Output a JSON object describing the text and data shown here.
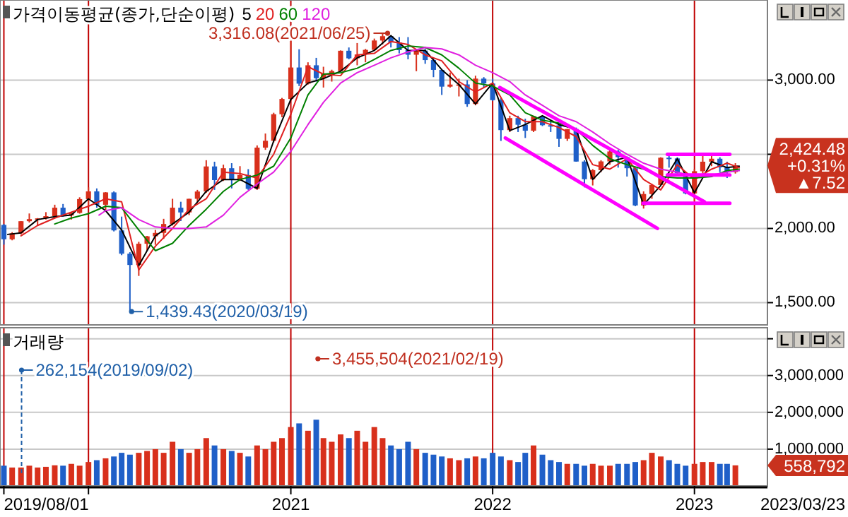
{
  "chart_data": [
    {
      "type": "candlestick",
      "title": "가격이동평균(종가,단순이평)",
      "legend": "top left",
      "grid": true,
      "tick_labels": "y",
      "xlim": [
        "2019-07-25",
        "2023-05-13"
      ],
      "ylim": [
        1350,
        3540
      ],
      "xticks": [
        {
          "value": "2019-08-01",
          "label": null
        },
        {
          "value": "2020-01-01",
          "label": null
        },
        {
          "value": "2021-01-01",
          "label": null
        },
        {
          "value": "2022-01-01",
          "label": null
        },
        {
          "value": "2023-01-01",
          "label": null
        }
      ],
      "yticks": [
        {
          "value": 1500,
          "label": "1,500.00"
        },
        {
          "value": 2000,
          "label": "2,000.00"
        },
        {
          "value": 2500,
          "label": null
        },
        {
          "value": 3000,
          "label": "3,000.00"
        }
      ],
      "x": [
        "2019-08-01",
        "2019-08-16",
        "2019-09-01",
        "2019-09-16",
        "2019-10-01",
        "2019-10-16",
        "2019-11-01",
        "2019-11-16",
        "2019-12-01",
        "2019-12-16",
        "2020-01-01",
        "2020-01-16",
        "2020-02-01",
        "2020-02-16",
        "2020-03-01",
        "2020-03-16",
        "2020-04-01",
        "2020-04-16",
        "2020-05-01",
        "2020-05-16",
        "2020-06-01",
        "2020-06-16",
        "2020-07-01",
        "2020-07-16",
        "2020-08-01",
        "2020-08-16",
        "2020-09-01",
        "2020-09-16",
        "2020-10-01",
        "2020-10-16",
        "2020-11-01",
        "2020-11-16",
        "2020-12-01",
        "2020-12-16",
        "2021-01-01",
        "2021-01-16",
        "2021-02-01",
        "2021-02-16",
        "2021-03-01",
        "2021-03-16",
        "2021-04-01",
        "2021-04-16",
        "2021-05-01",
        "2021-05-16",
        "2021-06-01",
        "2021-06-16",
        "2021-07-01",
        "2021-07-16",
        "2021-08-01",
        "2021-08-16",
        "2021-09-01",
        "2021-09-16",
        "2021-10-01",
        "2021-10-16",
        "2021-11-01",
        "2021-11-16",
        "2021-12-01",
        "2021-12-16",
        "2022-01-01",
        "2022-01-16",
        "2022-02-01",
        "2022-02-16",
        "2022-03-01",
        "2022-03-16",
        "2022-04-01",
        "2022-04-16",
        "2022-05-01",
        "2022-05-16",
        "2022-06-01",
        "2022-06-16",
        "2022-07-01",
        "2022-07-16",
        "2022-08-01",
        "2022-08-16",
        "2022-09-01",
        "2022-09-16",
        "2022-10-01",
        "2022-10-16",
        "2022-11-01",
        "2022-11-16",
        "2022-12-01",
        "2022-12-16",
        "2023-01-01",
        "2023-01-16",
        "2023-02-01",
        "2023-02-16",
        "2023-03-01",
        "2023-03-16"
      ],
      "ohlc": [
        [
          2024,
          2030,
          1891,
          1927
        ],
        [
          1927,
          1975,
          1920,
          1967
        ],
        [
          1967,
          2050,
          1960,
          2049
        ],
        [
          2049,
          2101,
          2040,
          2063
        ],
        [
          2063,
          2070,
          2020,
          2068
        ],
        [
          2068,
          2110,
          2060,
          2083
        ],
        [
          2083,
          2160,
          2080,
          2140
        ],
        [
          2140,
          2165,
          2080,
          2088
        ],
        [
          2088,
          2110,
          2060,
          2105
        ],
        [
          2105,
          2210,
          2100,
          2198
        ],
        [
          2198,
          2277,
          2150,
          2250
        ],
        [
          2250,
          2270,
          2140,
          2160
        ],
        [
          2160,
          2245,
          2120,
          2243
        ],
        [
          2243,
          2250,
          1980,
          1987
        ],
        [
          1987,
          2080,
          1820,
          1830
        ],
        [
          1830,
          1840,
          1439.43,
          1754
        ],
        [
          1754,
          1910,
          1680,
          1897
        ],
        [
          1897,
          1950,
          1850,
          1947
        ],
        [
          1947,
          1990,
          1890,
          1970
        ],
        [
          1970,
          2065,
          1930,
          2030
        ],
        [
          2030,
          2200,
          2020,
          2140
        ],
        [
          2140,
          2180,
          2050,
          2108
        ],
        [
          2108,
          2200,
          2090,
          2200
        ],
        [
          2200,
          2260,
          2180,
          2249
        ],
        [
          2249,
          2460,
          2240,
          2418
        ],
        [
          2418,
          2450,
          2260,
          2326
        ],
        [
          2326,
          2430,
          2320,
          2406
        ],
        [
          2406,
          2440,
          2270,
          2327
        ],
        [
          2327,
          2420,
          2320,
          2360
        ],
        [
          2360,
          2400,
          2260,
          2267
        ],
        [
          2267,
          2560,
          2260,
          2545
        ],
        [
          2545,
          2640,
          2530,
          2591
        ],
        [
          2591,
          2780,
          2580,
          2770
        ],
        [
          2770,
          2880,
          2750,
          2873
        ],
        [
          2873,
          3266,
          2860,
          3085
        ],
        [
          3085,
          3208,
          2960,
          2976
        ],
        [
          2976,
          3120,
          2970,
          3100
        ],
        [
          3100,
          3150,
          2990,
          3013
        ],
        [
          3013,
          3090,
          2950,
          3045
        ],
        [
          3045,
          3070,
          2990,
          3061
        ],
        [
          3061,
          3200,
          3060,
          3198
        ],
        [
          3198,
          3220,
          3140,
          3147
        ],
        [
          3147,
          3250,
          3100,
          3173
        ],
        [
          3173,
          3210,
          3120,
          3204
        ],
        [
          3204,
          3280,
          3200,
          3267
        ],
        [
          3267,
          3316.08,
          3240,
          3296
        ],
        [
          3296,
          3300,
          3220,
          3254
        ],
        [
          3254,
          3290,
          3180,
          3202
        ],
        [
          3202,
          3290,
          3140,
          3171
        ],
        [
          3171,
          3210,
          3060,
          3199
        ],
        [
          3199,
          3210,
          3110,
          3135
        ],
        [
          3135,
          3150,
          3020,
          3069
        ],
        [
          3069,
          3070,
          2900,
          2956
        ],
        [
          2956,
          3050,
          2950,
          2970
        ],
        [
          2970,
          3010,
          2890,
          2971
        ],
        [
          2971,
          3000,
          2820,
          2839
        ],
        [
          2839,
          3030,
          2830,
          3010
        ],
        [
          3010,
          3020,
          2950,
          2977
        ],
        [
          2977,
          3010,
          2860,
          2865
        ],
        [
          2865,
          2880,
          2590,
          2663
        ],
        [
          2663,
          2760,
          2650,
          2744
        ],
        [
          2744,
          2760,
          2650,
          2699
        ],
        [
          2699,
          2740,
          2610,
          2659
        ],
        [
          2659,
          2760,
          2650,
          2757
        ],
        [
          2757,
          2760,
          2690,
          2696
        ],
        [
          2696,
          2730,
          2650,
          2695
        ],
        [
          2695,
          2700,
          2550,
          2604
        ],
        [
          2604,
          2670,
          2590,
          2670
        ],
        [
          2670,
          2680,
          2450,
          2451
        ],
        [
          2451,
          2460,
          2277,
          2332
        ],
        [
          2332,
          2400,
          2290,
          2393
        ],
        [
          2393,
          2460,
          2380,
          2452
        ],
        [
          2452,
          2530,
          2430,
          2519
        ],
        [
          2519,
          2530,
          2410,
          2481
        ],
        [
          2481,
          2485,
          2350,
          2406
        ],
        [
          2406,
          2410,
          2150,
          2155
        ],
        [
          2155,
          2250,
          2134,
          2232
        ],
        [
          2232,
          2300,
          2200,
          2293
        ],
        [
          2293,
          2480,
          2290,
          2477
        ],
        [
          2477,
          2490,
          2410,
          2472
        ],
        [
          2472,
          2480,
          2370,
          2372
        ],
        [
          2372,
          2380,
          2230,
          2236
        ],
        [
          2236,
          2400,
          2180,
          2386
        ],
        [
          2386,
          2490,
          2370,
          2450
        ],
        [
          2450,
          2490,
          2420,
          2470
        ],
        [
          2470,
          2480,
          2380,
          2412
        ],
        [
          2412,
          2450,
          2340,
          2380
        ],
        [
          2380,
          2440,
          2370,
          2424.48
        ]
      ],
      "colors": [
        "#1f5fc8",
        "#d8301c",
        "#d8301c",
        "#d8301c",
        "#d8301c",
        "#d8301c",
        "#d8301c",
        "#1f5fc8",
        "#d8301c",
        "#d8301c",
        "#d8301c",
        "#1f5fc8",
        "#d8301c",
        "#1f5fc8",
        "#1f5fc8",
        "#1f5fc8",
        "#d8301c",
        "#d8301c",
        "#d8301c",
        "#d8301c",
        "#d8301c",
        "#1f5fc8",
        "#d8301c",
        "#d8301c",
        "#d8301c",
        "#1f5fc8",
        "#d8301c",
        "#1f5fc8",
        "#d8301c",
        "#1f5fc8",
        "#d8301c",
        "#d8301c",
        "#d8301c",
        "#d8301c",
        "#d8301c",
        "#1f5fc8",
        "#d8301c",
        "#1f5fc8",
        "#d8301c",
        "#d8301c",
        "#d8301c",
        "#1f5fc8",
        "#d8301c",
        "#d8301c",
        "#d8301c",
        "#d8301c",
        "#1f5fc8",
        "#1f5fc8",
        "#1f5fc8",
        "#d8301c",
        "#1f5fc8",
        "#1f5fc8",
        "#1f5fc8",
        "#d8301c",
        "#d8301c",
        "#1f5fc8",
        "#d8301c",
        "#1f5fc8",
        "#1f5fc8",
        "#1f5fc8",
        "#d8301c",
        "#1f5fc8",
        "#1f5fc8",
        "#d8301c",
        "#1f5fc8",
        "#1f5fc8",
        "#1f5fc8",
        "#d8301c",
        "#1f5fc8",
        "#1f5fc8",
        "#d8301c",
        "#d8301c",
        "#d8301c",
        "#1f5fc8",
        "#1f5fc8",
        "#1f5fc8",
        "#d8301c",
        "#d8301c",
        "#d8301c",
        "#1f5fc8",
        "#1f5fc8",
        "#1f5fc8",
        "#d8301c",
        "#d8301c",
        "#d8301c",
        "#1f5fc8",
        "#1f5fc8",
        "#d8301c"
      ],
      "series": [
        {
          "name": "5",
          "type": "line",
          "color": "#000000",
          "x": [
            "2019-08-08",
            "2019-09-01",
            "2019-10-01",
            "2019-11-01",
            "2019-12-01",
            "2020-01-01",
            "2020-02-01",
            "2020-03-01",
            "2020-04-01",
            "2020-05-01",
            "2020-06-01",
            "2020-07-01",
            "2020-08-01",
            "2020-09-01",
            "2020-10-01",
            "2020-11-01",
            "2020-12-01",
            "2021-01-01",
            "2021-02-01",
            "2021-03-01",
            "2021-04-01",
            "2021-05-01",
            "2021-06-01",
            "2021-07-01",
            "2021-08-01",
            "2021-09-01",
            "2021-10-01",
            "2021-11-01",
            "2021-12-01",
            "2022-01-01",
            "2022-02-01",
            "2022-03-01",
            "2022-04-01",
            "2022-05-01",
            "2022-06-01",
            "2022-07-01",
            "2022-08-01",
            "2022-09-01",
            "2022-10-01",
            "2022-11-01",
            "2022-12-01",
            "2023-01-01",
            "2023-02-01",
            "2023-03-01",
            "2023-03-23"
          ],
          "values": [
            1960,
            1970,
            2060,
            2080,
            2090,
            2200,
            2120,
            1990,
            1750,
            1950,
            2030,
            2110,
            2250,
            2330,
            2330,
            2270,
            2590,
            2870,
            2980,
            3010,
            3060,
            3150,
            3200,
            3300,
            3200,
            3200,
            3070,
            2970,
            2840,
            2980,
            2660,
            2700,
            2760,
            2700,
            2670,
            2330,
            2450,
            2480,
            2160,
            2290,
            2470,
            2240,
            2450,
            2410,
            2420
          ]
        },
        {
          "name": "20",
          "type": "line",
          "color": "#e02020",
          "x": [
            "2019-09-01",
            "2019-10-01",
            "2019-11-01",
            "2019-12-01",
            "2020-01-01",
            "2020-02-01",
            "2020-03-01",
            "2020-04-01",
            "2020-05-01",
            "2020-06-01",
            "2020-07-01",
            "2020-08-01",
            "2020-09-01",
            "2020-10-01",
            "2020-11-01",
            "2020-12-01",
            "2021-01-01",
            "2021-02-01",
            "2021-03-01",
            "2021-04-01",
            "2021-05-01",
            "2021-06-01",
            "2021-07-01",
            "2021-08-01",
            "2021-09-01",
            "2021-10-01",
            "2021-11-01",
            "2021-12-01",
            "2022-01-01",
            "2022-02-01",
            "2022-03-01",
            "2022-04-01",
            "2022-05-01",
            "2022-06-01",
            "2022-07-01",
            "2022-08-01",
            "2022-09-01",
            "2022-10-01",
            "2022-11-01",
            "2022-12-01",
            "2023-01-01",
            "2023-02-01",
            "2023-03-01",
            "2023-03-23"
          ],
          "values": [
            1950,
            2020,
            2070,
            2110,
            2150,
            2200,
            2180,
            1720,
            1880,
            2000,
            2130,
            2200,
            2380,
            2370,
            2340,
            2500,
            2770,
            3090,
            3040,
            3030,
            3170,
            3180,
            3260,
            3240,
            3170,
            3130,
            2990,
            2920,
            2980,
            2780,
            2720,
            2720,
            2680,
            2620,
            2430,
            2400,
            2470,
            2330,
            2260,
            2430,
            2330,
            2400,
            2440,
            2410
          ]
        },
        {
          "name": "60",
          "type": "line",
          "color": "#008000",
          "x": [
            "2019-11-01",
            "2019-12-01",
            "2020-01-01",
            "2020-02-01",
            "2020-03-01",
            "2020-04-01",
            "2020-05-01",
            "2020-06-01",
            "2020-07-01",
            "2020-08-01",
            "2020-09-01",
            "2020-10-01",
            "2020-11-01",
            "2020-12-01",
            "2021-01-01",
            "2021-02-01",
            "2021-03-01",
            "2021-04-01",
            "2021-05-01",
            "2021-06-01",
            "2021-07-01",
            "2021-08-01",
            "2021-09-01",
            "2021-10-01",
            "2021-11-01",
            "2021-12-01",
            "2022-01-01",
            "2022-02-01",
            "2022-03-01",
            "2022-04-01",
            "2022-05-01",
            "2022-06-01",
            "2022-07-01",
            "2022-08-01",
            "2022-09-01",
            "2022-10-01",
            "2022-11-01",
            "2022-12-01",
            "2023-01-01",
            "2023-02-01",
            "2023-03-01",
            "2023-03-23"
          ],
          "values": [
            2030,
            2070,
            2100,
            2150,
            2140,
            1990,
            1850,
            1900,
            2020,
            2130,
            2250,
            2330,
            2360,
            2420,
            2610,
            2900,
            3040,
            3050,
            3080,
            3140,
            3200,
            3230,
            3220,
            3170,
            3080,
            2980,
            2960,
            2900,
            2780,
            2730,
            2710,
            2670,
            2560,
            2470,
            2430,
            2400,
            2350,
            2340,
            2340,
            2350,
            2390,
            2400
          ]
        },
        {
          "name": "120",
          "type": "line",
          "color": "#e020e0",
          "x": [
            "2020-01-20",
            "2020-02-01",
            "2020-03-01",
            "2020-04-01",
            "2020-05-01",
            "2020-06-01",
            "2020-07-01",
            "2020-08-01",
            "2020-09-01",
            "2020-10-01",
            "2020-11-01",
            "2020-12-01",
            "2021-01-01",
            "2021-02-01",
            "2021-03-01",
            "2021-04-01",
            "2021-05-01",
            "2021-06-01",
            "2021-07-01",
            "2021-08-01",
            "2021-09-01",
            "2021-10-01",
            "2021-11-01",
            "2021-12-01",
            "2022-01-01",
            "2022-02-01",
            "2022-03-01",
            "2022-04-01",
            "2022-05-01",
            "2022-06-01",
            "2022-07-01",
            "2022-08-01",
            "2022-09-01",
            "2022-10-01",
            "2022-11-01",
            "2022-12-01",
            "2023-01-01",
            "2023-02-01",
            "2023-03-01",
            "2023-03-23"
          ],
          "values": [
            2090,
            2120,
            2140,
            2060,
            2010,
            2000,
            2000,
            2010,
            2090,
            2210,
            2300,
            2380,
            2520,
            2700,
            2850,
            2980,
            3050,
            3100,
            3150,
            3190,
            3220,
            3210,
            3170,
            3100,
            3050,
            2990,
            2900,
            2830,
            2760,
            2720,
            2650,
            2570,
            2500,
            2440,
            2400,
            2380,
            2350,
            2360,
            2380,
            2390
          ]
        },
        {
          "type": "line",
          "color": "#ff00ff",
          "x": [
            "2022-01-14",
            "2023-01-19"
          ],
          "values": [
            2950,
            2180
          ]
        },
        {
          "type": "line",
          "color": "#ff00ff",
          "x": [
            "2022-01-24",
            "2022-10-26"
          ],
          "values": [
            2610,
            2000
          ]
        },
        {
          "type": "line",
          "color": "#ff00ff",
          "x": [
            "2022-09-30",
            "2023-03-06"
          ],
          "values": [
            2170,
            2170
          ]
        },
        {
          "type": "line",
          "color": "#ff00ff",
          "x": [
            "2022-11-13",
            "2023-03-06"
          ],
          "values": [
            2500,
            2500
          ]
        },
        {
          "type": "line",
          "color": "#ff00ff",
          "x": [
            "2022-11-13",
            "2023-03-06"
          ],
          "values": [
            2360,
            2360
          ]
        }
      ],
      "annotations": [
        {
          "text": "3,316.08(2021/06/25)",
          "x": "2021-06-25",
          "y": 3316.08
        },
        {
          "text": "1,439.43(2020/03/19)",
          "x": "2020-03-19",
          "y": 1439.43
        },
        {
          "text": "2,424.48\n+0.31%\n▲7.52",
          "x": "2023-03-23",
          "y": 2424.48
        }
      ]
    },
    {
      "type": "bar",
      "title": "거래량",
      "grid": true,
      "xlim": [
        "2019-07-25",
        "2023-05-13"
      ],
      "ylim": [
        0,
        4300000
      ],
      "xticks": [
        {
          "value": "2019-08-01",
          "label": "2019/08/01"
        },
        {
          "value": "2020-01-01",
          "label": null
        },
        {
          "value": "2021-01-01",
          "label": "2021"
        },
        {
          "value": "2022-01-01",
          "label": "2022"
        },
        {
          "value": "2023-01-01",
          "label": "2023"
        }
      ],
      "yticks": [
        {
          "value": 1000000,
          "label": "1,000,000"
        },
        {
          "value": 2000000,
          "label": "2,000,000"
        },
        {
          "value": 3000000,
          "label": "3,000,000"
        },
        {
          "value": 4000000,
          "label": null
        }
      ],
      "x": [
        "2019-08-01",
        "2019-08-16",
        "2019-09-01",
        "2019-09-16",
        "2019-10-01",
        "2019-10-16",
        "2019-11-01",
        "2019-11-16",
        "2019-12-01",
        "2019-12-16",
        "2020-01-01",
        "2020-01-16",
        "2020-02-01",
        "2020-02-16",
        "2020-03-01",
        "2020-03-16",
        "2020-04-01",
        "2020-04-16",
        "2020-05-01",
        "2020-05-16",
        "2020-06-01",
        "2020-06-16",
        "2020-07-01",
        "2020-07-16",
        "2020-08-01",
        "2020-08-16",
        "2020-09-01",
        "2020-09-16",
        "2020-10-01",
        "2020-10-16",
        "2020-11-01",
        "2020-11-16",
        "2020-12-01",
        "2020-12-16",
        "2021-01-01",
        "2021-01-16",
        "2021-02-01",
        "2021-02-16",
        "2021-03-01",
        "2021-03-16",
        "2021-04-01",
        "2021-04-16",
        "2021-05-01",
        "2021-05-16",
        "2021-06-01",
        "2021-06-16",
        "2021-07-01",
        "2021-07-16",
        "2021-08-01",
        "2021-08-16",
        "2021-09-01",
        "2021-09-16",
        "2021-10-01",
        "2021-10-16",
        "2021-11-01",
        "2021-11-16",
        "2021-12-01",
        "2021-12-16",
        "2022-01-01",
        "2022-01-16",
        "2022-02-01",
        "2022-02-16",
        "2022-03-01",
        "2022-03-16",
        "2022-04-01",
        "2022-04-16",
        "2022-05-01",
        "2022-05-16",
        "2022-06-01",
        "2022-06-16",
        "2022-07-01",
        "2022-07-16",
        "2022-08-01",
        "2022-08-16",
        "2022-09-01",
        "2022-09-16",
        "2022-10-01",
        "2022-10-16",
        "2022-11-01",
        "2022-11-16",
        "2022-12-01",
        "2022-12-16",
        "2023-01-01",
        "2023-01-16",
        "2023-02-01",
        "2023-02-16",
        "2023-03-01",
        "2023-03-16"
      ],
      "values": [
        550000,
        500000,
        500000,
        550000,
        500000,
        520000,
        560000,
        550000,
        600000,
        550000,
        650000,
        700000,
        750000,
        800000,
        900000,
        850000,
        900000,
        950000,
        1000000,
        900000,
        1200000,
        1000000,
        900000,
        1000000,
        1300000,
        1100000,
        1000000,
        950000,
        900000,
        800000,
        1100000,
        1000000,
        1200000,
        1300000,
        1600000,
        1700000,
        1500000,
        1800000,
        1300000,
        1200000,
        1400000,
        1300000,
        1500000,
        1200000,
        1600000,
        1300000,
        1100000,
        1000000,
        1200000,
        1000000,
        900000,
        850000,
        800000,
        750000,
        700000,
        750000,
        800000,
        750000,
        900000,
        800000,
        700000,
        650000,
        900000,
        1100000,
        850000,
        700000,
        650000,
        600000,
        600000,
        550000,
        600000,
        550000,
        550000,
        600000,
        600000,
        650000,
        700000,
        900000,
        800000,
        700000,
        600000,
        550000,
        600000,
        650000,
        650000,
        600000,
        600000,
        558792
      ],
      "colors": [
        "#1f5fc8",
        "#d8301c",
        "#d8301c",
        "#d8301c",
        "#d8301c",
        "#d8301c",
        "#d8301c",
        "#1f5fc8",
        "#d8301c",
        "#d8301c",
        "#d8301c",
        "#1f5fc8",
        "#d8301c",
        "#1f5fc8",
        "#1f5fc8",
        "#1f5fc8",
        "#d8301c",
        "#d8301c",
        "#d8301c",
        "#d8301c",
        "#d8301c",
        "#1f5fc8",
        "#d8301c",
        "#d8301c",
        "#d8301c",
        "#1f5fc8",
        "#d8301c",
        "#1f5fc8",
        "#d8301c",
        "#1f5fc8",
        "#d8301c",
        "#d8301c",
        "#d8301c",
        "#d8301c",
        "#d8301c",
        "#1f5fc8",
        "#d8301c",
        "#1f5fc8",
        "#d8301c",
        "#d8301c",
        "#d8301c",
        "#1f5fc8",
        "#d8301c",
        "#d8301c",
        "#d8301c",
        "#d8301c",
        "#1f5fc8",
        "#1f5fc8",
        "#1f5fc8",
        "#d8301c",
        "#1f5fc8",
        "#1f5fc8",
        "#1f5fc8",
        "#d8301c",
        "#d8301c",
        "#1f5fc8",
        "#d8301c",
        "#1f5fc8",
        "#1f5fc8",
        "#1f5fc8",
        "#d8301c",
        "#1f5fc8",
        "#1f5fc8",
        "#d8301c",
        "#1f5fc8",
        "#1f5fc8",
        "#1f5fc8",
        "#d8301c",
        "#1f5fc8",
        "#1f5fc8",
        "#d8301c",
        "#d8301c",
        "#d8301c",
        "#1f5fc8",
        "#1f5fc8",
        "#1f5fc8",
        "#d8301c",
        "#d8301c",
        "#d8301c",
        "#1f5fc8",
        "#1f5fc8",
        "#1f5fc8",
        "#d8301c",
        "#d8301c",
        "#d8301c",
        "#1f5fc8",
        "#1f5fc8",
        "#d8301c"
      ],
      "annotations": [
        {
          "text": "3,455,504(2021/02/19)",
          "x": "2021-02-19",
          "y": 3455504
        },
        {
          "text": "262,154(2019/09/02)",
          "x": "2019-09-02",
          "y": 262154
        },
        {
          "text": "558,792",
          "x": "2023-03-23",
          "y": 558792
        },
        "2023/03/23"
      ]
    }
  ]
}
